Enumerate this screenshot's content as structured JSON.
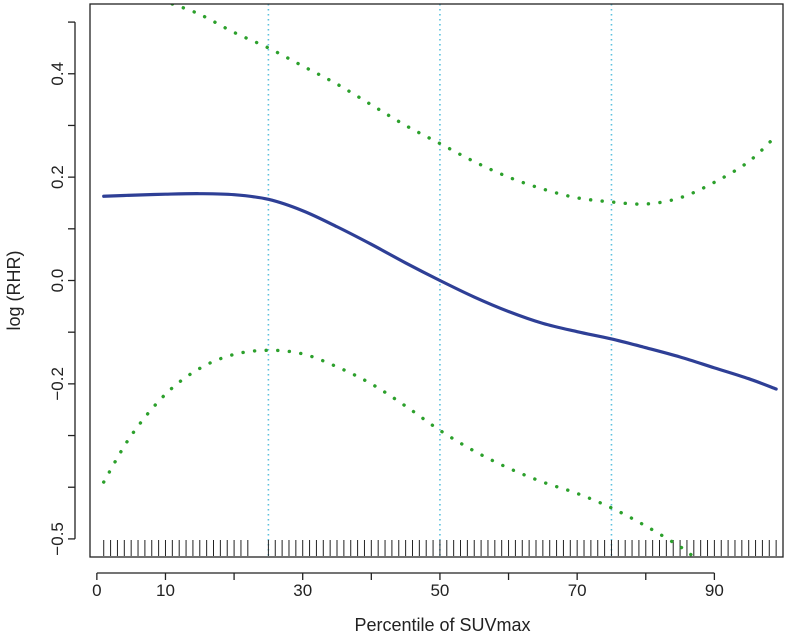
{
  "chart_data": {
    "type": "line",
    "title": "",
    "xlabel": "Percentile of SUVmax",
    "ylabel": "log (RHR)",
    "xlim": [
      -1,
      100
    ],
    "ylim": [
      -0.535,
      0.535
    ],
    "x_ticks": [
      0,
      10,
      20,
      30,
      40,
      50,
      60,
      70,
      80,
      90
    ],
    "x_tick_labels": [
      "0",
      "10",
      "",
      "30",
      "",
      "50",
      "",
      "70",
      "",
      "90"
    ],
    "y_ticks": [
      -0.5,
      -0.4,
      -0.3,
      -0.2,
      -0.1,
      0.0,
      0.1,
      0.2,
      0.3,
      0.4,
      0.5
    ],
    "y_tick_labels": [
      "−0.5",
      "",
      "",
      "−0.2",
      "",
      "0.0",
      "",
      "0.2",
      "",
      "0.4",
      ""
    ],
    "reference_lines_x": [
      25,
      50,
      75
    ],
    "grid": false,
    "colors": {
      "estimate": "#2e3f96",
      "ci": "#2ca02c",
      "reference": "#5bc0de",
      "axis": "#222222"
    },
    "series": [
      {
        "style": "solid",
        "x": [
          1,
          5,
          10,
          15,
          20,
          25,
          30,
          35,
          40,
          45,
          50,
          55,
          60,
          65,
          70,
          75,
          80,
          85,
          90,
          95,
          99
        ],
        "y": [
          0.163,
          0.165,
          0.167,
          0.168,
          0.166,
          0.157,
          0.135,
          0.104,
          0.07,
          0.034,
          0.0,
          -0.032,
          -0.06,
          -0.083,
          -0.099,
          -0.113,
          -0.13,
          -0.148,
          -0.169,
          -0.19,
          -0.21
        ]
      },
      {
        "style": "dotted",
        "x": [
          11,
          15,
          20,
          25,
          30,
          35,
          40,
          45,
          50,
          55,
          60,
          65,
          70,
          75,
          80,
          85,
          90,
          95,
          99
        ],
        "y": [
          0.535,
          0.515,
          0.48,
          0.45,
          0.415,
          0.38,
          0.34,
          0.3,
          0.265,
          0.23,
          0.2,
          0.177,
          0.16,
          0.152,
          0.148,
          0.16,
          0.19,
          0.23,
          0.28
        ]
      },
      {
        "style": "dotted",
        "x": [
          1,
          5,
          10,
          15,
          20,
          25,
          30,
          35,
          40,
          45,
          50,
          55,
          60,
          65,
          70,
          75,
          80,
          85,
          87
        ],
        "y": [
          -0.39,
          -0.3,
          -0.22,
          -0.17,
          -0.143,
          -0.135,
          -0.142,
          -0.167,
          -0.2,
          -0.243,
          -0.29,
          -0.33,
          -0.363,
          -0.39,
          -0.412,
          -0.44,
          -0.475,
          -0.515,
          -0.535
        ]
      }
    ],
    "rug_x": [
      1,
      2,
      3,
      4,
      5,
      6,
      7,
      8,
      9,
      10,
      11,
      12,
      13,
      14,
      15,
      16,
      17,
      18,
      19,
      20,
      21,
      22,
      25,
      26,
      27,
      28,
      29,
      30,
      31,
      32,
      33,
      34,
      35,
      36,
      37,
      38,
      39,
      40,
      41,
      42,
      43,
      44,
      45,
      46,
      47,
      48,
      49,
      50,
      51,
      52,
      53,
      54,
      55,
      56,
      57,
      58,
      59,
      60,
      61,
      62,
      63,
      64,
      65,
      66,
      67,
      68,
      69,
      70,
      71,
      72,
      73,
      74,
      75,
      76,
      77,
      78,
      79,
      80,
      81,
      82,
      83,
      84,
      85,
      86,
      87,
      88,
      89,
      90,
      91,
      92,
      93,
      94,
      95,
      96,
      97,
      98,
      99
    ]
  }
}
